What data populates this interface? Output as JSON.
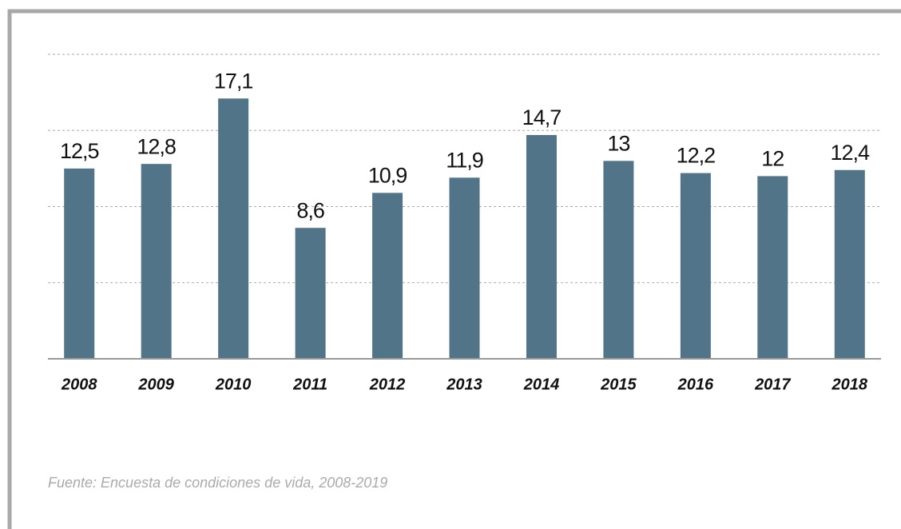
{
  "chart_data": {
    "type": "bar",
    "categories": [
      "2008",
      "2009",
      "2010",
      "2011",
      "2012",
      "2013",
      "2014",
      "2015",
      "2016",
      "2017",
      "2018"
    ],
    "values": [
      12.5,
      12.8,
      17.1,
      8.6,
      10.9,
      11.9,
      14.7,
      13,
      12.2,
      12,
      12.4
    ],
    "value_labels": [
      "12,5",
      "12,8",
      "17,1",
      "8,6",
      "10,9",
      "11,9",
      "14,7",
      "13",
      "12,2",
      "12",
      "12,4"
    ],
    "color": "#517489",
    "ylim": [
      0,
      20
    ],
    "yticks": [
      0,
      5,
      10,
      15,
      20
    ],
    "grid": true,
    "source": "Fuente: Encuesta de condiciones de vida, 2008-2019"
  }
}
